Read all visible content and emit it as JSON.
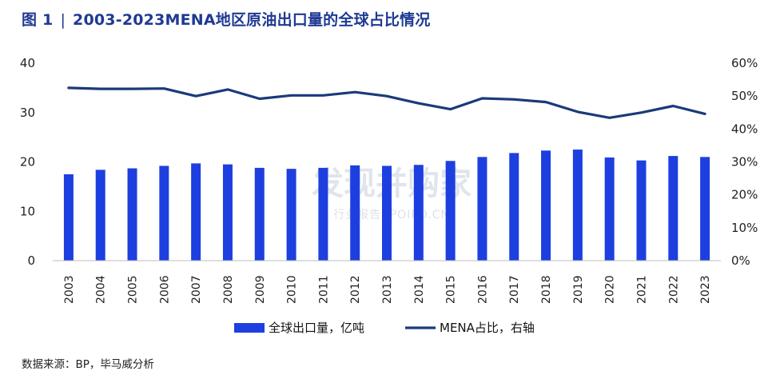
{
  "header": {
    "fig_label": "图 1",
    "separator": "|",
    "title": "2003-2023MENA地区原油出口量的全球占比情况"
  },
  "source": "数据来源：BP，毕马威分析",
  "watermark": {
    "main": "发现并购家",
    "sub": "行业报告  IPOIPO.CN"
  },
  "colors": {
    "bar": "#1d3fe0",
    "line": "#1a3a7a",
    "title": "#1f3a93"
  },
  "chart_data": {
    "type": "bar+line",
    "title": "2003-2023MENA地区原油出口量的全球占比情况",
    "categories": [
      "2003",
      "2004",
      "2005",
      "2006",
      "2007",
      "2008",
      "2009",
      "2010",
      "2011",
      "2012",
      "2013",
      "2014",
      "2015",
      "2016",
      "2017",
      "2018",
      "2019",
      "2020",
      "2021",
      "2022",
      "2023"
    ],
    "series": [
      {
        "name": "全球出口量，亿吨",
        "type": "bar",
        "axis": "left",
        "values": [
          17.5,
          18.4,
          18.7,
          19.2,
          19.7,
          19.5,
          18.8,
          18.6,
          18.8,
          19.3,
          19.2,
          19.4,
          20.2,
          21.0,
          21.8,
          22.3,
          22.5,
          20.9,
          20.3,
          21.2,
          21.0
        ]
      },
      {
        "name": "MENA占比，右轴",
        "type": "line",
        "axis": "right",
        "values": [
          52.5,
          52.2,
          52.2,
          52.3,
          50.0,
          52.0,
          49.2,
          50.2,
          50.2,
          51.2,
          50.0,
          47.8,
          46.0,
          49.3,
          49.0,
          48.2,
          45.2,
          43.4,
          45.0,
          47.0,
          44.6
        ]
      }
    ],
    "y_left": {
      "min": 0,
      "max": 40,
      "ticks": [
        "0",
        "10",
        "20",
        "30",
        "40"
      ]
    },
    "y_right": {
      "min": 0,
      "max": 60,
      "ticks": [
        "0%",
        "10%",
        "20%",
        "30%",
        "40%",
        "50%",
        "60%"
      ]
    },
    "legend": {
      "position": "bottom"
    },
    "grid": false
  }
}
